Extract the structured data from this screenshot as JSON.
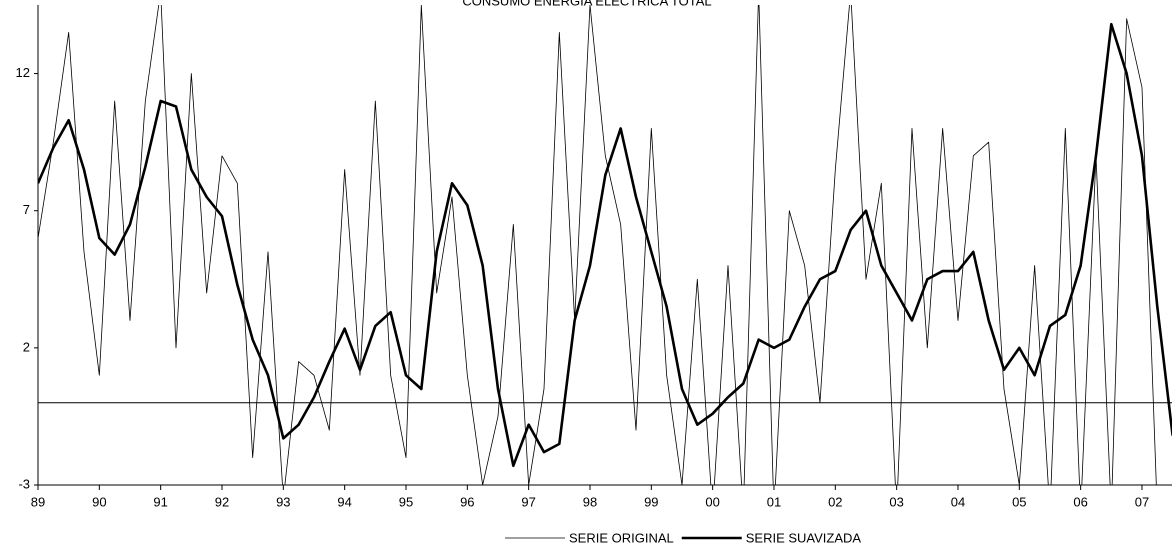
{
  "chart_data": {
    "type": "line",
    "title": "CONSUMO ENERGIA ELECTRICA TOTAL",
    "categories": [
      "89",
      null,
      null,
      null,
      "90",
      null,
      null,
      null,
      "91",
      null,
      null,
      null,
      "92",
      null,
      null,
      null,
      "93",
      null,
      null,
      null,
      "94",
      null,
      null,
      null,
      "95",
      null,
      null,
      null,
      "96",
      null,
      null,
      null,
      "97",
      null,
      null,
      null,
      "98",
      null,
      null,
      null,
      "99",
      null,
      null,
      null,
      "00",
      null,
      null,
      null,
      "01",
      null,
      null,
      null,
      "02",
      null,
      null,
      null,
      "03",
      null,
      null,
      null,
      "04",
      null,
      null,
      null,
      "05",
      null,
      null,
      null,
      "06",
      null,
      null,
      null,
      "07",
      null,
      null
    ],
    "series": [
      {
        "name": "SERIE ORIGINAL",
        "color": "#000000",
        "width": 0.8,
        "values": [
          6,
          9.5,
          13.5,
          5.5,
          1,
          11,
          3,
          11,
          15,
          2,
          12,
          4,
          9,
          8,
          -2,
          5.5,
          -3.5,
          1.5,
          1,
          -1,
          8.5,
          1,
          11,
          1,
          -2,
          14.5,
          4,
          7.5,
          1,
          -3,
          -0.5,
          6.5,
          -3,
          0.5,
          13.5,
          3,
          14.5,
          9,
          6.5,
          -1,
          10,
          1,
          -3,
          4.5,
          -4,
          5,
          -4,
          15,
          -4,
          7,
          5,
          0,
          8.5,
          15,
          4.5,
          8,
          -4,
          10,
          2,
          10,
          3,
          9,
          9.5,
          0.5,
          -3,
          5,
          -4,
          10,
          -4,
          9,
          -4,
          14,
          11.5,
          -4,
          -4
        ]
      },
      {
        "name": "SERIE SUAVIZADA",
        "color": "#000000",
        "width": 2.6,
        "values": [
          8.0,
          9.3,
          10.3,
          8.5,
          6.0,
          5.4,
          6.5,
          8.6,
          11.0,
          10.8,
          8.5,
          7.5,
          6.8,
          4.3,
          2.3,
          1.0,
          -1.3,
          -0.8,
          0.2,
          1.5,
          2.7,
          1.2,
          2.8,
          3.3,
          1.0,
          0.5,
          5.5,
          8.0,
          7.2,
          5.0,
          0.5,
          -2.3,
          -0.8,
          -1.8,
          -1.5,
          3.0,
          5.0,
          8.3,
          10.0,
          7.5,
          5.5,
          3.5,
          0.5,
          -0.8,
          -0.4,
          0.2,
          0.7,
          2.3,
          2.0,
          2.3,
          3.5,
          4.5,
          4.8,
          6.3,
          7.0,
          5.0,
          4.0,
          3.0,
          4.5,
          4.8,
          4.8,
          5.5,
          3.0,
          1.2,
          2.0,
          1.0,
          2.8,
          3.2,
          5.0,
          9.0,
          13.8,
          12.0,
          9.0,
          3.5,
          -1.2
        ]
      }
    ],
    "ylim": [
      -3,
      14.5
    ],
    "yticks": [
      -3,
      2,
      7,
      12
    ],
    "grid": false
  }
}
